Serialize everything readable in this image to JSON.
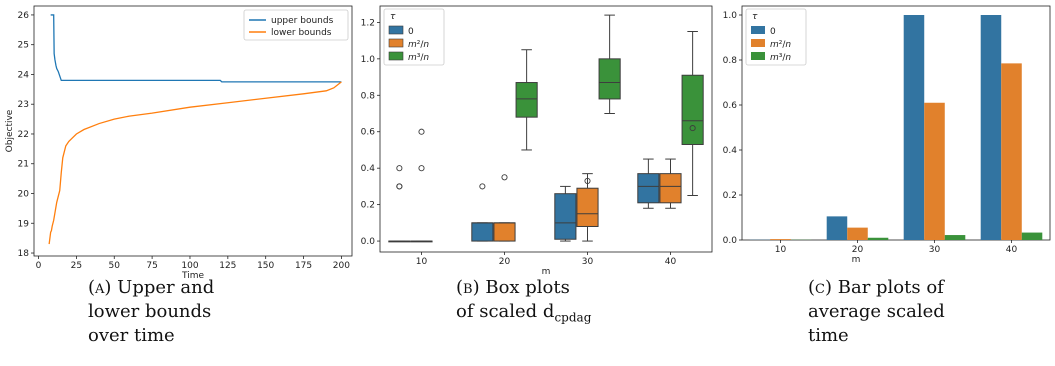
{
  "chart_data": [
    {
      "type": "line",
      "xlabel": "Time",
      "ylabel": "Objective",
      "xlim": [
        -3,
        207
      ],
      "ylim": [
        17.9,
        26.3
      ],
      "xticks": [
        "0",
        "25",
        "50",
        "75",
        "100",
        "125",
        "150",
        "175",
        "200"
      ],
      "yticks": [
        "18",
        "19",
        "20",
        "21",
        "22",
        "23",
        "24",
        "25",
        "26"
      ],
      "legend_position": "top-right",
      "grid": false,
      "series": [
        {
          "name": "upper bounds",
          "color": "#1f77b4",
          "x": [
            8,
            10,
            10.3,
            10.8,
            11.5,
            12,
            13,
            14,
            15,
            120,
            121,
            200
          ],
          "y": [
            26.0,
            26.0,
            24.7,
            24.5,
            24.3,
            24.2,
            24.1,
            23.95,
            23.8,
            23.8,
            23.75,
            23.75
          ]
        },
        {
          "name": "lower bounds",
          "color": "#ff7f0e",
          "x": [
            7,
            8,
            8.5,
            9,
            10,
            12,
            14,
            15,
            16,
            17,
            18,
            20,
            22,
            25,
            30,
            40,
            50,
            60,
            75,
            100,
            125,
            150,
            175,
            190,
            195,
            200
          ],
          "y": [
            18.3,
            18.7,
            18.75,
            18.9,
            19.1,
            19.7,
            20.1,
            20.7,
            21.2,
            21.4,
            21.6,
            21.75,
            21.85,
            22.0,
            22.15,
            22.35,
            22.5,
            22.6,
            22.7,
            22.9,
            23.05,
            23.2,
            23.35,
            23.45,
            23.55,
            23.75
          ]
        }
      ]
    },
    {
      "type": "box",
      "xlabel": "m",
      "ylabel": "",
      "categories": [
        "10",
        "20",
        "30",
        "40"
      ],
      "ylim": [
        -0.06,
        1.29
      ],
      "yticks": [
        "0.0",
        "0.2",
        "0.4",
        "0.6",
        "0.8",
        "1.0",
        "1.2"
      ],
      "legend_title": "τ",
      "legend_position": "top-left",
      "grid": false,
      "series": [
        {
          "name": "0",
          "color": "#3274a1",
          "boxes": [
            {
              "min": 0,
              "q1": 0,
              "median": 0,
              "q3": 0,
              "max": 0,
              "outliers": [
                0.3,
                0.3,
                0.4
              ]
            },
            {
              "min": 0,
              "q1": 0,
              "median": 0.1,
              "q3": 0.1,
              "max": 0.1,
              "outliers": [
                0.3
              ]
            },
            {
              "min": 0,
              "q1": 0.01,
              "median": 0.1,
              "q3": 0.26,
              "max": 0.3,
              "outliers": []
            },
            {
              "min": 0.18,
              "q1": 0.21,
              "median": 0.3,
              "q3": 0.37,
              "max": 0.45,
              "outliers": []
            }
          ]
        },
        {
          "name": "m²/n",
          "color": "#e1812c",
          "boxes": [
            {
              "min": 0,
              "q1": 0,
              "median": 0,
              "q3": 0,
              "max": 0,
              "outliers": [
                0.4,
                0.6
              ]
            },
            {
              "min": 0,
              "q1": 0,
              "median": 0.1,
              "q3": 0.1,
              "max": 0.1,
              "outliers": [
                0.35
              ]
            },
            {
              "min": 0,
              "q1": 0.08,
              "median": 0.15,
              "q3": 0.29,
              "max": 0.37,
              "outliers": [
                0.33
              ]
            },
            {
              "min": 0.18,
              "q1": 0.21,
              "median": 0.3,
              "q3": 0.37,
              "max": 0.45,
              "outliers": []
            }
          ]
        },
        {
          "name": "m³/n",
          "color": "#3a923a",
          "boxes": [
            null,
            {
              "min": 0.5,
              "q1": 0.68,
              "median": 0.78,
              "q3": 0.87,
              "max": 1.05,
              "outliers": []
            },
            {
              "min": 0.7,
              "q1": 0.78,
              "median": 0.87,
              "q3": 1.0,
              "max": 1.24,
              "outliers": []
            },
            {
              "min": 0.25,
              "q1": 0.53,
              "median": 0.66,
              "q3": 0.91,
              "max": 1.15,
              "outliers": [
                0.62
              ]
            }
          ]
        }
      ]
    },
    {
      "type": "bar",
      "xlabel": "m",
      "ylabel": "",
      "categories": [
        "10",
        "20",
        "30",
        "40"
      ],
      "ylim": [
        0,
        1.04
      ],
      "yticks": [
        "0.0",
        "0.2",
        "0.4",
        "0.6",
        "0.8",
        "1.0"
      ],
      "legend_title": "τ",
      "legend_position": "top-left",
      "grid": false,
      "series": [
        {
          "name": "0",
          "color": "#3274a1",
          "values": [
            0.001,
            0.105,
            1.0,
            1.0
          ]
        },
        {
          "name": "m²/n",
          "color": "#e1812c",
          "values": [
            0.004,
            0.055,
            0.61,
            0.785
          ]
        },
        {
          "name": "m³/n",
          "color": "#3a923a",
          "values": [
            0.001,
            0.01,
            0.022,
            0.033
          ]
        }
      ]
    }
  ],
  "captions": {
    "a": {
      "tag": "(a)",
      "lines": [
        "Upper and",
        "lower bounds",
        "over time"
      ]
    },
    "b": {
      "tag": "(b)",
      "lines": [
        "Box plots",
        "of scaled d"
      ],
      "subscript": "cpdag"
    },
    "c": {
      "tag": "(c)",
      "lines": [
        "Bar plots of",
        "average scaled",
        "time"
      ]
    }
  }
}
